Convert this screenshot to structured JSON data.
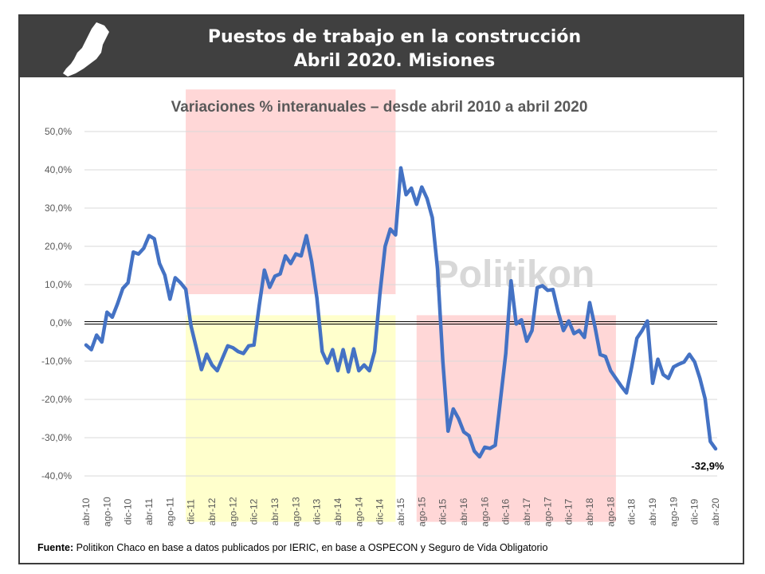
{
  "header": {
    "title_line1": "Puestos de trabajo en la construcción",
    "title_line2": "Abril 2020. Misiones"
  },
  "watermark": "Politikon",
  "source": {
    "label": "Fuente:",
    "text": "Politikon Chaco en base a datos publicados por IERIC, en base a OSPECON y Seguro de Vida Obligatorio"
  },
  "chart_data": {
    "type": "line",
    "title": "Variaciones % interanuales – desde abril 2010 a abril 2020",
    "xlabel": "",
    "ylabel": "",
    "ylim": [
      -40,
      50
    ],
    "yticks": [
      "50,0%",
      "40,0%",
      "30,0%",
      "20,0%",
      "10,0%",
      "0,0%",
      "-10,0%",
      "-20,0%",
      "-30,0%",
      "-40,0%"
    ],
    "x_tick_labels": [
      "abr-10",
      "ago-10",
      "dic-10",
      "abr-11",
      "ago-11",
      "dic-11",
      "abr-12",
      "ago-12",
      "dic-12",
      "abr-13",
      "ago-13",
      "dic-13",
      "abr-14",
      "ago-14",
      "dic-14",
      "abr-15",
      "ago-15",
      "dic-15",
      "abr-16",
      "ago-16",
      "dic-16",
      "abr-17",
      "ago-17",
      "dic-17",
      "abr-18",
      "ago-18",
      "dic-18",
      "abr-19",
      "ago-19",
      "dic-19",
      "abr-20"
    ],
    "grid": true,
    "line_color": "#4472C4",
    "shaded_regions": [
      {
        "from": "nov-11",
        "to": "mar-15",
        "ymin": 7.5,
        "ymax": 61,
        "color": "#ffd7d7"
      },
      {
        "from": "nov-11",
        "to": "mar-15",
        "ymin": -52,
        "ymax": 2,
        "color": "#ffffcc"
      },
      {
        "from": "jul-15",
        "to": "sep-18",
        "ymin": -52,
        "ymax": 2,
        "color": "#ffd7d7"
      }
    ],
    "annotation": {
      "label": "-32,9%",
      "month": "abr-20",
      "value": -32.9
    },
    "series": [
      {
        "x_start": "abr-10",
        "x_end": "abr-20",
        "values": [
          -5.8,
          -7,
          -3.2,
          -5,
          2.8,
          1.5,
          5,
          9,
          10.5,
          18.5,
          18,
          19.5,
          22.8,
          22,
          15.5,
          12.5,
          6.2,
          11.8,
          10.5,
          8.8,
          -0.8,
          -6.5,
          -12.2,
          -8.2,
          -11,
          -12.5,
          -9.2,
          -6,
          -6.5,
          -7.5,
          -8,
          -6,
          -5.8,
          4.5,
          13.8,
          9.3,
          12.2,
          12.8,
          17.5,
          15.5,
          18,
          17.5,
          22.8,
          16,
          6.5,
          -7.5,
          -10.5,
          -7,
          -12.5,
          -7,
          -12.8,
          -6.8,
          -12.5,
          -11,
          -12.5,
          -7.5,
          7.5,
          20,
          24.5,
          23,
          40.5,
          33.5,
          35.2,
          31,
          35.5,
          32.5,
          27.5,
          14,
          -10,
          -28.3,
          -22.5,
          -25,
          -28.5,
          -29.5,
          -33.5,
          -35,
          -32.5,
          -32.8,
          -32,
          -20,
          -8,
          11,
          -0.3,
          0.8,
          -4.8,
          -2,
          9.2,
          9.7,
          8.5,
          8.7,
          2.8,
          -2,
          0.5,
          -2.8,
          -2,
          -3.8,
          5.3,
          -1,
          -8.3,
          -8.8,
          -12.5,
          -14.5,
          -16.5,
          -18.3,
          -11.5,
          -4,
          -2,
          0.5,
          -15.8,
          -9.5,
          -13.5,
          -14.5,
          -11.5,
          -10.8,
          -10.2,
          -8.2,
          -10.2,
          -14.5,
          -19.8,
          -31,
          -32.9
        ]
      }
    ]
  }
}
